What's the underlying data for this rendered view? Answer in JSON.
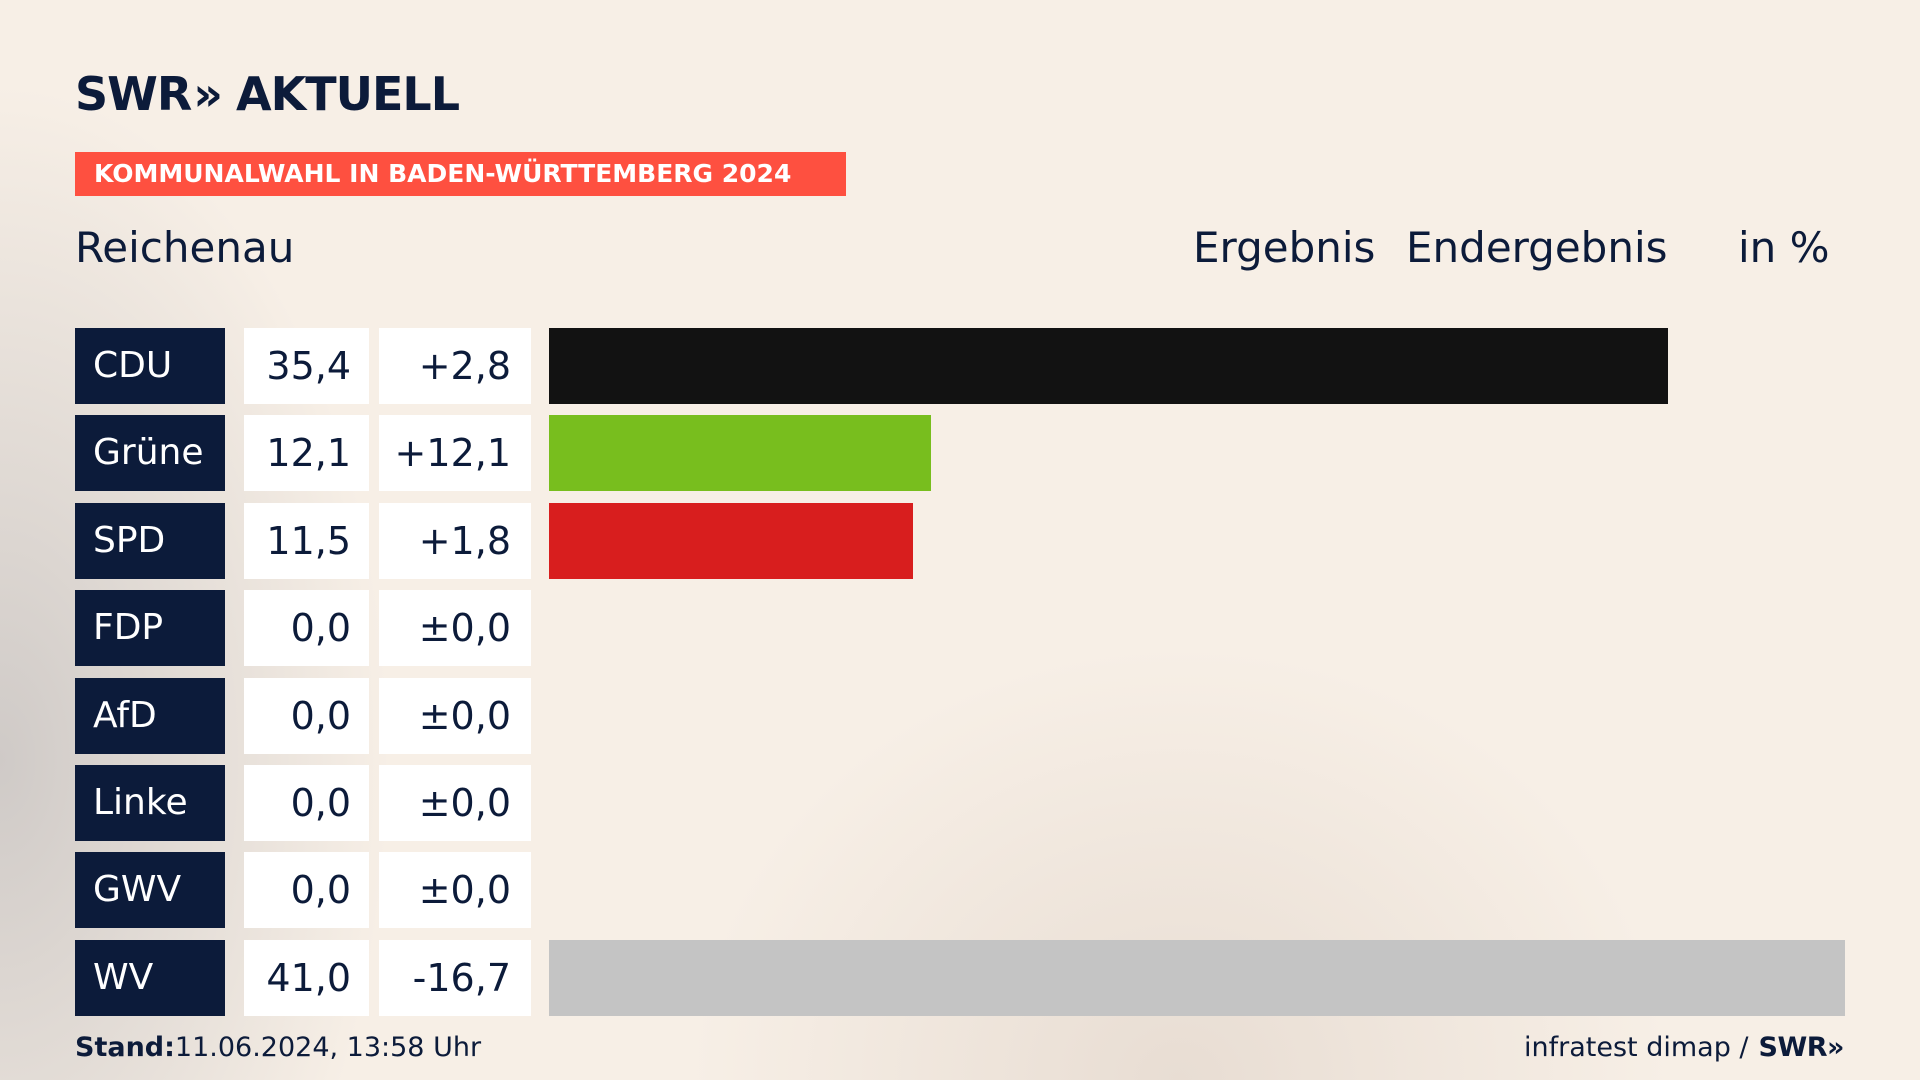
{
  "header": {
    "logo_text": "SWR",
    "logo_chevron": "»",
    "logo_product": "AKTUELL",
    "banner": "KOMMUNALWAHL IN BADEN-WÜRTTEMBERG 2024",
    "place": "Reichenau",
    "col_ergebnis": "Ergebnis",
    "col_endergebnis": "Endergebnis",
    "col_unit": "in %"
  },
  "chart_data": {
    "type": "bar",
    "orientation": "horizontal",
    "categories": [
      "CDU",
      "Grüne",
      "SPD",
      "FDP",
      "AfD",
      "Linke",
      "GWV",
      "WV"
    ],
    "series": [
      {
        "values": [
          35.4,
          12.1,
          11.5,
          0.0,
          0.0,
          0.0,
          0.0,
          41.0
        ],
        "value_labels": [
          "35,4",
          "12,1",
          "11,5",
          "0,0",
          "0,0",
          "0,0",
          "0,0",
          "41,0"
        ],
        "diff_labels": [
          "+2,8",
          "+12,1",
          "+1,8",
          "±0,0",
          "±0,0",
          "±0,0",
          "±0,0",
          "-16,7"
        ],
        "colors": [
          "#121212",
          "#78be1e",
          "#d81e1e",
          "#ffe400",
          "#009ee0",
          "#be3075",
          "#888888",
          "#c4c4c4"
        ]
      }
    ],
    "xlim": [
      0,
      41.0
    ],
    "grid": false,
    "legend": "none"
  },
  "footer": {
    "stand_label": "Stand:",
    "stand_value": "11.06.2024, 13:58 Uhr",
    "source": "infratest dimap /",
    "source_logo": "SWR»"
  }
}
